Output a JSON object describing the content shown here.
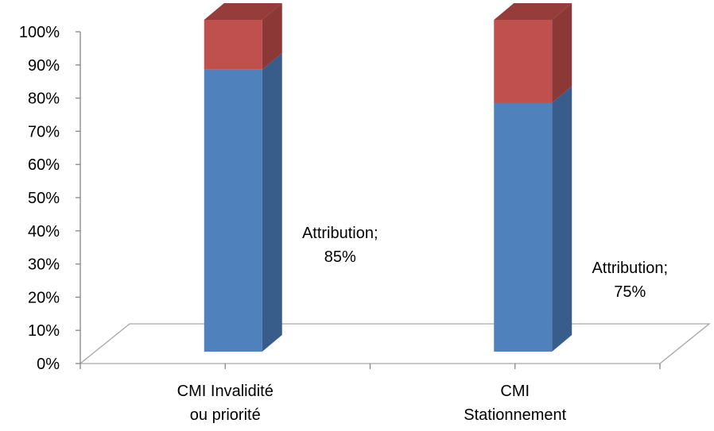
{
  "chart_data": {
    "type": "bar",
    "stacked": true,
    "three_d": true,
    "categories": [
      [
        "CMI Invalidité",
        "ou priorité"
      ],
      [
        "CMI",
        "Stationnement"
      ]
    ],
    "series": [
      {
        "values": [
          85,
          75
        ],
        "color": "#4f81bd",
        "side_color": "#385d8a",
        "top_color": "#3c6496"
      },
      {
        "values": [
          15,
          25
        ],
        "color": "#c0504d",
        "side_color": "#8c3836",
        "top_color": "#963c3a"
      }
    ],
    "data_labels": [
      {
        "category_index": 0,
        "lines": [
          "Attribution;",
          "85%"
        ]
      },
      {
        "category_index": 1,
        "lines": [
          "Attribution;",
          "75%"
        ]
      }
    ],
    "y_ticks": [
      "0%",
      "10%",
      "20%",
      "30%",
      "40%",
      "50%",
      "60%",
      "70%",
      "80%",
      "90%",
      "100%"
    ],
    "ylim": [
      0,
      100
    ],
    "grid": false,
    "legend": "none"
  }
}
